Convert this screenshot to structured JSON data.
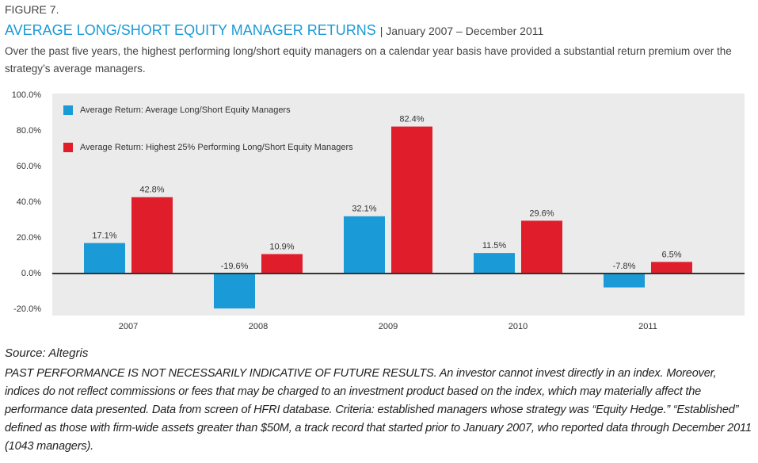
{
  "figure_label": "FIGURE 7.",
  "description": "Over the past five years, the highest performing long/short equity managers on a calendar year basis have provided a substantial return premium over the strategy’s average managers.",
  "source": "Source: Altegris",
  "disclaimer": "PAST PERFORMANCE IS NOT NECESSARILY INDICATIVE OF FUTURE RESULTS. An investor cannot invest directly in an index. Moreover, indices do not reflect commissions or fees that may be charged to an investment product based on the index, which may materially affect the performance data presented. Data from screen of HFRI database. Criteria: established managers whose strategy was “Equity Hedge.” “Established” defined as those with firm-wide assets greater than $50M, a track record that started prior to January 2007, who reported data through December 2011 (1043 managers).",
  "chart_data": {
    "type": "bar",
    "title": "AVERAGE LONG/SHORT EQUITY MANAGER RETURNS",
    "subtitle": "| January 2007 – December 2011",
    "categories": [
      "2007",
      "2008",
      "2009",
      "2010",
      "2011"
    ],
    "series": [
      {
        "name": "Average Return: Average Long/Short Equity Managers",
        "color": "#1a9ad6",
        "values": [
          17.1,
          -19.6,
          32.1,
          11.5,
          -7.8
        ],
        "value_labels": [
          "17.1%",
          "-19.6%",
          "32.1%",
          "11.5%",
          "-7.8%"
        ]
      },
      {
        "name": "Average Return: Highest 25% Performing Long/Short Equity Managers",
        "color": "#e01e2b",
        "values": [
          42.8,
          10.9,
          82.4,
          29.6,
          6.5
        ],
        "value_labels": [
          "42.8%",
          "10.9%",
          "82.4%",
          "29.6%",
          "6.5%"
        ]
      }
    ],
    "ylim": [
      -20,
      100
    ],
    "yticks": [
      {
        "value": -20,
        "label": "-20.0%"
      },
      {
        "value": 0,
        "label": "0.0%"
      },
      {
        "value": 20,
        "label": "20.0%"
      },
      {
        "value": 40,
        "label": "40.0%"
      },
      {
        "value": 60,
        "label": "60.0%"
      },
      {
        "value": 80,
        "label": "80.0%"
      },
      {
        "value": 100,
        "label": "100.0%"
      }
    ],
    "legend_position": "upper left",
    "background": "#ebebeb"
  }
}
